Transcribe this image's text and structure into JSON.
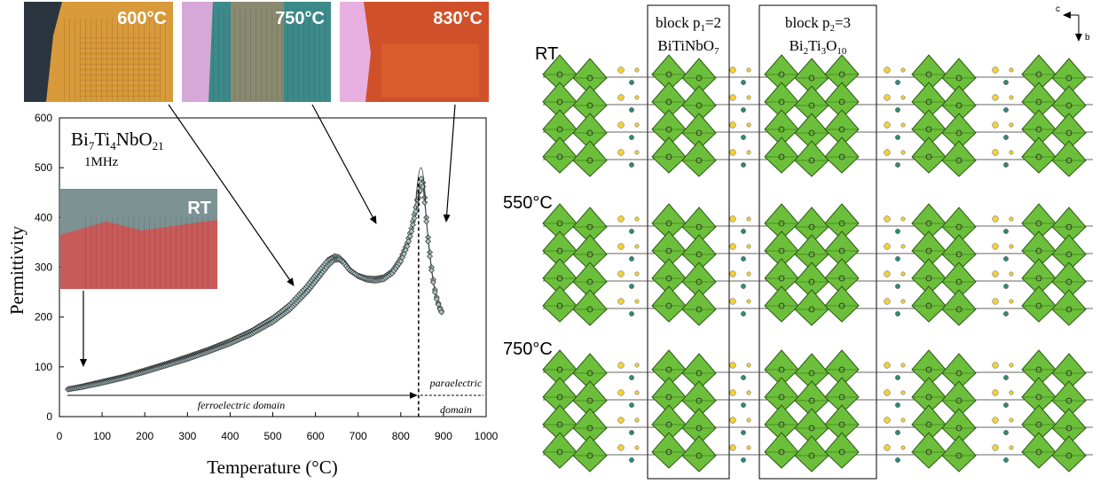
{
  "photos": [
    {
      "label": "600°C",
      "base": "#d89a3a",
      "accent": "#f2c060",
      "dark": "#2a3540"
    },
    {
      "label": "750°C",
      "base": "#3d8a8a",
      "accent": "#c98a5a",
      "dark": "#d6a8d8"
    },
    {
      "label": "830°C",
      "base": "#d0502a",
      "accent": "#e06a30",
      "dark": "#e8b0e0"
    },
    {
      "label": "RT",
      "base": "#c85a5a",
      "accent": "#6aa0a0",
      "dark": "#e06060"
    }
  ],
  "chart_data": {
    "type": "scatter",
    "title_parts": [
      "Bi",
      "7",
      "Ti",
      "4",
      "NbO",
      "21"
    ],
    "subtitle": "1MHz",
    "xlabel": "Temperature (°C)",
    "ylabel": "Permittivity",
    "xlim": [
      0,
      1000
    ],
    "ylim": [
      0,
      600
    ],
    "xticks": [
      "0",
      "100",
      "200",
      "300",
      "400",
      "500",
      "600",
      "700",
      "800",
      "900",
      "1000"
    ],
    "yticks": [
      "0",
      "100",
      "200",
      "300",
      "400",
      "500",
      "600"
    ],
    "grid": false,
    "transition_temperature": 850,
    "domains": {
      "ferro": "ferroelectric domain",
      "para_1": "paraelectric",
      "para_2": "domain"
    },
    "series": [
      {
        "x": [
          20,
          50,
          100,
          150,
          200,
          250,
          300,
          350,
          400,
          450,
          500,
          540,
          580,
          610,
          630,
          645,
          655,
          665,
          680,
          700,
          720,
          740,
          760,
          780,
          800,
          815,
          825,
          835,
          842,
          848,
          852,
          856,
          860,
          864,
          868,
          872,
          876,
          880,
          884,
          888,
          892,
          895,
          900
        ],
        "y": [
          55,
          60,
          70,
          80,
          93,
          106,
          120,
          135,
          152,
          172,
          198,
          225,
          262,
          295,
          315,
          322,
          320,
          312,
          295,
          283,
          278,
          277,
          280,
          292,
          318,
          348,
          378,
          420,
          450,
          478,
          470,
          440,
          400,
          360,
          330,
          300,
          275,
          255,
          240,
          228,
          218,
          212,
          208
        ]
      },
      {
        "x": [
          20,
          50,
          100,
          150,
          200,
          250,
          300,
          350,
          400,
          450,
          500,
          540,
          580,
          610,
          630,
          645,
          655,
          665,
          680,
          700,
          720,
          740,
          760,
          780,
          800,
          815,
          825,
          835,
          842,
          848,
          852,
          856,
          860,
          864,
          868,
          872,
          876,
          880,
          884,
          888,
          892,
          895,
          900
        ],
        "y": [
          55,
          59,
          68,
          78,
          90,
          103,
          116,
          131,
          147,
          166,
          190,
          215,
          250,
          282,
          304,
          315,
          316,
          310,
          294,
          282,
          275,
          273,
          276,
          288,
          312,
          342,
          372,
          412,
          440,
          468,
          462,
          430,
          392,
          352,
          322,
          294,
          270,
          250,
          236,
          225,
          216,
          210,
          206
        ]
      }
    ]
  },
  "structure": {
    "rows": [
      {
        "label": "RT"
      },
      {
        "label": "550°C"
      },
      {
        "label": "750°C"
      }
    ],
    "block1": {
      "l1": "block p",
      "sub1": "1",
      "t1": "=2",
      "formula": "BiTiNbO",
      "fsub": "7"
    },
    "block2": {
      "l1": "block p",
      "sub1": "2",
      "t1": "=3",
      "f_parts": [
        "Bi",
        "2",
        "Ti",
        "3",
        "O",
        "10"
      ]
    },
    "axes": {
      "h": "c",
      "v": "b"
    },
    "colors": {
      "octahedron": "#6cbf3a",
      "octahedron_edge": "#2f5a18",
      "bi": "#f3d13a",
      "o": "#2f8a7a"
    }
  }
}
